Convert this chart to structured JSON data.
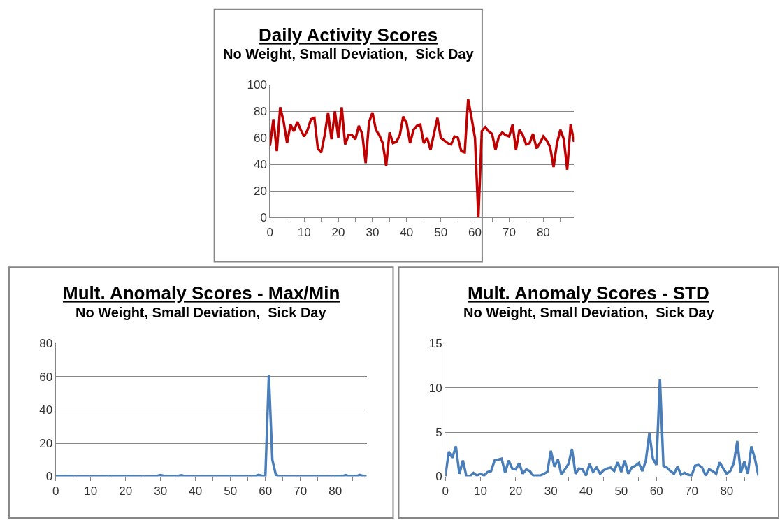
{
  "chart_data": [
    {
      "type": "line",
      "title": "Daily Activity Scores",
      "subtitle": "No Weight, Small Deviation,  Sick Day",
      "x": [
        0,
        1,
        2,
        3,
        4,
        5,
        6,
        7,
        8,
        9,
        10,
        11,
        12,
        13,
        14,
        15,
        16,
        17,
        18,
        19,
        20,
        21,
        22,
        23,
        24,
        25,
        26,
        27,
        28,
        29,
        30,
        31,
        32,
        33,
        34,
        35,
        36,
        37,
        38,
        39,
        40,
        41,
        42,
        43,
        44,
        45,
        46,
        47,
        48,
        49,
        50,
        51,
        52,
        53,
        54,
        55,
        56,
        57,
        58,
        59,
        60,
        61,
        62,
        63,
        64,
        65,
        66,
        67,
        68,
        69,
        70,
        71,
        72,
        73,
        74,
        75,
        76,
        77,
        78,
        79,
        80,
        81,
        82,
        83,
        84,
        85,
        86,
        87,
        88,
        89
      ],
      "series": [
        {
          "color": "#c00000",
          "values": [
            54,
            74,
            50,
            83,
            72,
            56,
            70,
            65,
            72,
            66,
            61,
            66,
            74,
            75,
            52,
            49,
            62,
            79,
            59,
            80,
            60,
            83,
            55,
            62,
            62,
            59,
            69,
            63,
            41,
            72,
            79,
            66,
            62,
            56,
            39,
            64,
            56,
            57,
            62,
            76,
            71,
            56,
            66,
            69,
            70,
            56,
            60,
            51,
            63,
            75,
            60,
            58,
            56,
            55,
            61,
            60,
            50,
            49,
            89,
            75,
            60,
            0,
            65,
            68,
            65,
            63,
            51,
            61,
            64,
            62,
            61,
            70,
            51,
            66,
            62,
            55,
            56,
            63,
            52,
            56,
            61,
            58,
            53,
            38,
            56,
            66,
            59,
            36,
            70,
            57
          ]
        }
      ],
      "xlim": [
        0,
        89
      ],
      "xticks": [
        0,
        {
          "value": 5,
          "label": null
        },
        10,
        {
          "value": 15,
          "label": null
        },
        20,
        {
          "value": 25,
          "label": null
        },
        30,
        {
          "value": 35,
          "label": null
        },
        40,
        {
          "value": 45,
          "label": null
        },
        50,
        {
          "value": 55,
          "label": null
        },
        60,
        {
          "value": 65,
          "label": null
        },
        70,
        {
          "value": 75,
          "label": null
        },
        80,
        {
          "value": 85,
          "label": null
        }
      ],
      "ylim": [
        0,
        100
      ],
      "yticks": [
        0,
        20,
        40,
        60,
        80,
        100
      ],
      "grid": "y",
      "marker": "none",
      "line_style": "solid"
    },
    {
      "type": "line",
      "title": "Mult. Anomaly Scores - Max/Min",
      "subtitle": "No Weight, Small Deviation,  Sick Day",
      "x": [
        0,
        1,
        2,
        3,
        4,
        5,
        6,
        7,
        8,
        9,
        10,
        11,
        12,
        13,
        14,
        15,
        16,
        17,
        18,
        19,
        20,
        21,
        22,
        23,
        24,
        25,
        26,
        27,
        28,
        29,
        30,
        31,
        32,
        33,
        34,
        35,
        36,
        37,
        38,
        39,
        40,
        41,
        42,
        43,
        44,
        45,
        46,
        47,
        48,
        49,
        50,
        51,
        52,
        53,
        54,
        55,
        56,
        57,
        58,
        59,
        60,
        61,
        62,
        63,
        64,
        65,
        66,
        67,
        68,
        69,
        70,
        71,
        72,
        73,
        74,
        75,
        76,
        77,
        78,
        79,
        80,
        81,
        82,
        83,
        84,
        85,
        86,
        87,
        88,
        89
      ],
      "series": [
        {
          "color": "#4a7ebb",
          "values": [
            0,
            0.3,
            0.2,
            0.3,
            0.1,
            0.2,
            0,
            0,
            0.1,
            0,
            0.1,
            0,
            0.1,
            0.1,
            0.2,
            0.2,
            0.2,
            0.1,
            0.2,
            0.1,
            0.1,
            0.2,
            0.1,
            0.1,
            0.1,
            0,
            0,
            0,
            0.1,
            0.3,
            0.8,
            0.3,
            0.2,
            0.1,
            0.2,
            0.3,
            0.7,
            0.1,
            0.1,
            0.1,
            0,
            0.2,
            0.1,
            0.1,
            0.1,
            0.1,
            0.1,
            0.1,
            0.1,
            0.2,
            0.1,
            0.2,
            0.1,
            0.1,
            0.1,
            0.2,
            0.1,
            0.2,
            0.9,
            0.5,
            0,
            61,
            10,
            1,
            0.1,
            0,
            0.1,
            0,
            0,
            0,
            0,
            0.1,
            0.1,
            0.1,
            0,
            0.1,
            0.1,
            0,
            0.2,
            0.1,
            0,
            0.1,
            0.2,
            0.8,
            0.1,
            0.3,
            0.1,
            0.9,
            0.3,
            0
          ]
        }
      ],
      "xlim": [
        0,
        89
      ],
      "xticks": [
        0,
        {
          "value": 5,
          "label": null
        },
        10,
        {
          "value": 15,
          "label": null
        },
        20,
        {
          "value": 25,
          "label": null
        },
        30,
        {
          "value": 35,
          "label": null
        },
        40,
        {
          "value": 45,
          "label": null
        },
        50,
        {
          "value": 55,
          "label": null
        },
        60,
        {
          "value": 65,
          "label": null
        },
        70,
        {
          "value": 75,
          "label": null
        },
        80,
        {
          "value": 85,
          "label": null
        }
      ],
      "ylim": [
        0,
        80
      ],
      "yticks": [
        0,
        20,
        40,
        60,
        80
      ],
      "grid": "y",
      "marker": "none",
      "line_style": "solid"
    },
    {
      "type": "line",
      "title": "Mult. Anomaly Scores - STD",
      "subtitle": "No Weight, Small Deviation,  Sick Day",
      "x": [
        0,
        1,
        2,
        3,
        4,
        5,
        6,
        7,
        8,
        9,
        10,
        11,
        12,
        13,
        14,
        15,
        16,
        17,
        18,
        19,
        20,
        21,
        22,
        23,
        24,
        25,
        26,
        27,
        28,
        29,
        30,
        31,
        32,
        33,
        34,
        35,
        36,
        37,
        38,
        39,
        40,
        41,
        42,
        43,
        44,
        45,
        46,
        47,
        48,
        49,
        50,
        51,
        52,
        53,
        54,
        55,
        56,
        57,
        58,
        59,
        60,
        61,
        62,
        63,
        64,
        65,
        66,
        67,
        68,
        69,
        70,
        71,
        72,
        73,
        74,
        75,
        76,
        77,
        78,
        79,
        80,
        81,
        82,
        83,
        84,
        85,
        86,
        87,
        88,
        89
      ],
      "series": [
        {
          "color": "#4a7ebb",
          "values": [
            0,
            2.8,
            2.1,
            3.4,
            0.3,
            1.8,
            0,
            0,
            0.4,
            0.1,
            0.3,
            0.1,
            0.5,
            0.6,
            1.8,
            1.9,
            2.0,
            0.4,
            1.8,
            0.9,
            0.8,
            1.5,
            0.3,
            0.8,
            0.6,
            0.1,
            0.1,
            0.1,
            0.3,
            0.5,
            2.9,
            1.1,
            1.9,
            0.2,
            0.8,
            1.4,
            3.1,
            0.3,
            0.9,
            0.8,
            0.1,
            1.4,
            0.5,
            1.0,
            0.3,
            0.7,
            0.9,
            1.0,
            0.6,
            1.6,
            0.5,
            1.8,
            0.3,
            1.0,
            1.2,
            1.5,
            0.6,
            1.8,
            4.9,
            2.0,
            1.3,
            11.0,
            1.2,
            1.0,
            0.6,
            0.3,
            1.1,
            0.2,
            0.4,
            0.2,
            0.1,
            1.2,
            1.3,
            1.0,
            0.1,
            0.8,
            0.6,
            0.3,
            1.6,
            0.9,
            0.3,
            0.6,
            1.5,
            4.0,
            0.4,
            1.7,
            0.3,
            3.4,
            2.0,
            0.1
          ]
        }
      ],
      "xlim": [
        0,
        89
      ],
      "xticks": [
        0,
        {
          "value": 5,
          "label": null
        },
        10,
        {
          "value": 15,
          "label": null
        },
        20,
        {
          "value": 25,
          "label": null
        },
        30,
        {
          "value": 35,
          "label": null
        },
        40,
        {
          "value": 45,
          "label": null
        },
        50,
        {
          "value": 55,
          "label": null
        },
        60,
        {
          "value": 65,
          "label": null
        },
        70,
        {
          "value": 75,
          "label": null
        },
        80,
        {
          "value": 85,
          "label": null
        }
      ],
      "ylim": [
        0,
        15
      ],
      "yticks": [
        0,
        5,
        10,
        15
      ],
      "grid": "y",
      "marker": "none",
      "line_style": "solid"
    }
  ]
}
